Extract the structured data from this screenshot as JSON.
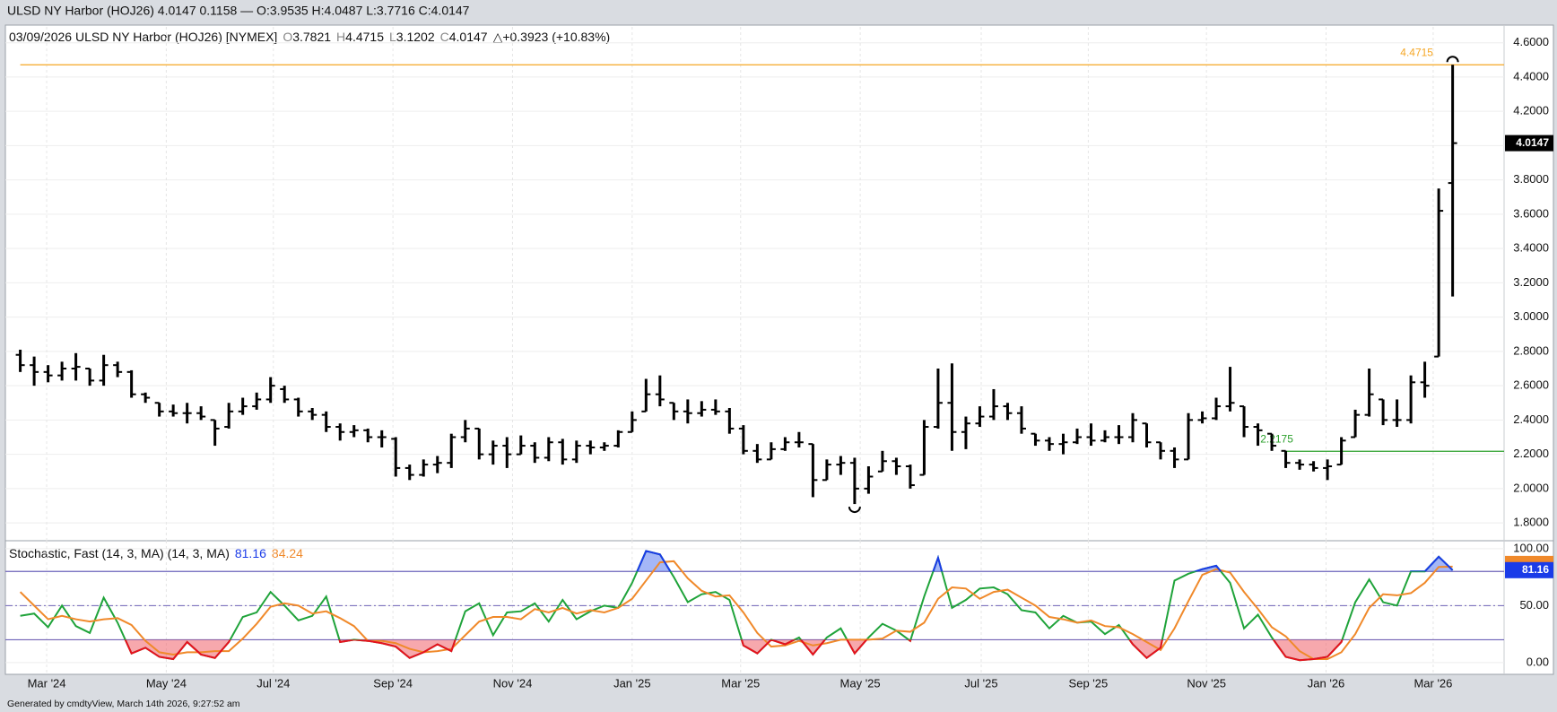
{
  "header": {
    "title": "ULSD NY Harbor (HOJ26) 4.0147 0.1158 — O:3.9535 H:4.0487 L:3.7716 C:4.0147"
  },
  "footer": "Generated by cmdtyView, March 14th 2026, 9:27:52 am",
  "chart_data": [
    {
      "type": "ohlc",
      "legend": {
        "label": "03/09/2026 ULSD NY Harbor (HOJ26) [NYMEX]",
        "letters": [
          "O",
          "H",
          "L",
          "C"
        ],
        "change": "△+0.3923 (+10.83%)"
      },
      "color": "#000000",
      "open": [
        2.78,
        2.72,
        2.68,
        2.66,
        2.7,
        2.7,
        2.63,
        2.72,
        2.68,
        2.55,
        2.5,
        2.45,
        2.44,
        2.44,
        2.4,
        2.36,
        2.45,
        2.48,
        2.52,
        2.58,
        2.52,
        2.45,
        2.43,
        2.36,
        2.33,
        2.34,
        2.3,
        2.29,
        2.12,
        2.08,
        2.14,
        2.15,
        2.3,
        2.35,
        2.2,
        2.25,
        2.2,
        2.25,
        2.18,
        2.27,
        2.17,
        2.25,
        2.24,
        2.25,
        2.33,
        2.45,
        2.55,
        2.5,
        2.45,
        2.44,
        2.46,
        2.45,
        2.35,
        2.22,
        2.17,
        2.23,
        2.27,
        2.26,
        2.05,
        2.14,
        2.15,
        2.0,
        2.1,
        2.16,
        2.13,
        2.08,
        2.36,
        2.5,
        2.33,
        2.38,
        2.42,
        2.48,
        2.44,
        2.32,
        2.28,
        2.26,
        2.27,
        2.3,
        2.28,
        2.3,
        2.3,
        2.38,
        2.27,
        2.22,
        2.17,
        2.4,
        2.41,
        2.48,
        2.48,
        2.36,
        2.32,
        2.22,
        2.15,
        2.14,
        2.12,
        2.14,
        2.3,
        2.43,
        2.52,
        2.4,
        2.4,
        2.62,
        2.77,
        3.7821
      ],
      "high": [
        2.81,
        2.77,
        2.72,
        2.74,
        2.79,
        2.7,
        2.78,
        2.74,
        2.69,
        2.56,
        2.5,
        2.49,
        2.5,
        2.48,
        2.4,
        2.5,
        2.53,
        2.56,
        2.65,
        2.6,
        2.53,
        2.47,
        2.45,
        2.38,
        2.37,
        2.35,
        2.34,
        2.3,
        2.14,
        2.17,
        2.19,
        2.32,
        2.4,
        2.35,
        2.28,
        2.3,
        2.31,
        2.27,
        2.3,
        2.29,
        2.28,
        2.28,
        2.27,
        2.34,
        2.45,
        2.64,
        2.66,
        2.5,
        2.52,
        2.51,
        2.52,
        2.47,
        2.37,
        2.26,
        2.27,
        2.3,
        2.33,
        2.26,
        2.17,
        2.19,
        2.18,
        2.13,
        2.22,
        2.18,
        2.14,
        2.4,
        2.7,
        2.73,
        2.42,
        2.48,
        2.58,
        2.5,
        2.48,
        2.32,
        2.3,
        2.32,
        2.35,
        2.38,
        2.34,
        2.37,
        2.44,
        2.38,
        2.27,
        2.24,
        2.44,
        2.45,
        2.53,
        2.71,
        2.48,
        2.38,
        2.32,
        2.22,
        2.17,
        2.16,
        2.17,
        2.3,
        2.46,
        2.7,
        2.52,
        2.52,
        2.66,
        2.74,
        3.75,
        4.4715
      ],
      "low": [
        2.68,
        2.6,
        2.62,
        2.63,
        2.63,
        2.6,
        2.6,
        2.65,
        2.53,
        2.5,
        2.42,
        2.42,
        2.38,
        2.4,
        2.25,
        2.35,
        2.43,
        2.46,
        2.5,
        2.5,
        2.42,
        2.4,
        2.33,
        2.28,
        2.3,
        2.27,
        2.24,
        2.07,
        2.05,
        2.07,
        2.09,
        2.12,
        2.27,
        2.17,
        2.14,
        2.12,
        2.2,
        2.15,
        2.16,
        2.14,
        2.15,
        2.2,
        2.22,
        2.24,
        2.33,
        2.45,
        2.48,
        2.4,
        2.38,
        2.42,
        2.43,
        2.32,
        2.2,
        2.15,
        2.17,
        2.22,
        2.24,
        1.95,
        2.05,
        2.08,
        1.91,
        1.97,
        2.1,
        2.08,
        2.0,
        2.08,
        2.35,
        2.22,
        2.23,
        2.36,
        2.4,
        2.4,
        2.32,
        2.25,
        2.22,
        2.2,
        2.26,
        2.25,
        2.27,
        2.26,
        2.27,
        2.24,
        2.17,
        2.12,
        2.17,
        2.38,
        2.4,
        2.45,
        2.3,
        2.25,
        2.22,
        2.12,
        2.11,
        2.1,
        2.05,
        2.14,
        2.3,
        2.42,
        2.37,
        2.36,
        2.38,
        2.53,
        2.77,
        3.1202
      ],
      "close": [
        2.72,
        2.68,
        2.66,
        2.7,
        2.71,
        2.63,
        2.72,
        2.68,
        2.55,
        2.53,
        2.45,
        2.44,
        2.44,
        2.42,
        2.35,
        2.45,
        2.48,
        2.52,
        2.6,
        2.52,
        2.45,
        2.43,
        2.36,
        2.33,
        2.34,
        2.3,
        2.3,
        2.12,
        2.08,
        2.14,
        2.15,
        2.3,
        2.35,
        2.2,
        2.25,
        2.2,
        2.25,
        2.18,
        2.27,
        2.17,
        2.25,
        2.24,
        2.25,
        2.33,
        2.4,
        2.55,
        2.52,
        2.45,
        2.44,
        2.46,
        2.45,
        2.35,
        2.22,
        2.17,
        2.23,
        2.27,
        2.27,
        2.05,
        2.14,
        2.15,
        2.0,
        2.07,
        2.16,
        2.13,
        2.02,
        2.36,
        2.5,
        2.33,
        2.38,
        2.42,
        2.48,
        2.44,
        2.35,
        2.28,
        2.26,
        2.27,
        2.3,
        2.28,
        2.3,
        2.3,
        2.4,
        2.27,
        2.22,
        2.17,
        2.4,
        2.41,
        2.48,
        2.5,
        2.36,
        2.34,
        2.25,
        2.15,
        2.14,
        2.12,
        2.13,
        2.28,
        2.43,
        2.55,
        2.4,
        2.4,
        2.62,
        2.6,
        3.62,
        4.0147
      ],
      "xlim": [
        -1.07,
        106.7
      ],
      "ylim": [
        1.696,
        4.6925
      ],
      "yticks": [
        {
          "value": 1.8,
          "label": "1.8000"
        },
        {
          "value": 2.0,
          "label": "2.0000"
        },
        {
          "value": 2.2,
          "label": "2.2000"
        },
        {
          "value": 2.4,
          "label": "2.4000"
        },
        {
          "value": 2.6,
          "label": "2.6000"
        },
        {
          "value": 2.8,
          "label": "2.8000"
        },
        {
          "value": 3.0,
          "label": "3.0000"
        },
        {
          "value": 3.2,
          "label": "3.2000"
        },
        {
          "value": 3.4,
          "label": "3.4000"
        },
        {
          "value": 3.6,
          "label": "3.6000"
        },
        {
          "value": 3.8,
          "label": "3.8000"
        },
        {
          "value": 4.0,
          "label": "4.0000"
        },
        {
          "value": 4.2,
          "label": "4.2000"
        },
        {
          "value": 4.4,
          "label": "4.4000"
        },
        {
          "value": 4.6,
          "label": "4.6000"
        }
      ],
      "grid": true,
      "annotations": [
        {
          "value": 4.4715,
          "color": "#f5a623",
          "start": 0
        },
        {
          "value": 2.2175,
          "color": "#2ca02c",
          "start": 91
        }
      ]
    },
    {
      "type": "stochastic",
      "title": "Stochastic, Fast (14, 3, MA)  (14, 3, MA)",
      "series": [
        {
          "color": "#1fa33a",
          "label_color": "#1a3be8",
          "values": [
            41,
            43,
            31,
            50,
            32,
            26,
            57,
            35,
            8,
            13,
            5,
            3,
            18,
            7,
            4,
            18,
            40,
            44,
            62,
            50,
            37,
            41,
            58,
            18,
            20,
            19,
            17,
            14,
            4,
            9,
            16,
            10,
            45,
            52,
            24,
            44,
            45,
            52,
            36,
            55,
            38,
            45,
            50,
            48,
            70,
            98,
            95,
            75,
            53,
            60,
            62,
            55,
            15,
            8,
            20,
            16,
            22,
            7,
            22,
            30,
            8,
            22,
            34,
            28,
            19,
            58,
            92,
            48,
            55,
            65,
            66,
            60,
            46,
            44,
            30,
            41,
            35,
            36,
            25,
            33,
            16,
            4,
            13,
            72,
            78,
            82,
            85,
            70,
            30,
            42,
            22,
            5,
            2,
            3,
            5,
            18,
            53,
            73,
            53,
            50,
            80,
            80,
            93,
            81.16
          ]
        },
        {
          "color": "#f0892a",
          "label_color": "#f0892a",
          "values": [
            62,
            50,
            38,
            41,
            38,
            36,
            38,
            39,
            33,
            19,
            9,
            7,
            9,
            9,
            10,
            10,
            21,
            34,
            49,
            52,
            50,
            43,
            45,
            39,
            32,
            19,
            19,
            17,
            12,
            9,
            10,
            12,
            24,
            36,
            40,
            40,
            38,
            47,
            44,
            48,
            43,
            46,
            44,
            48,
            56,
            72,
            88,
            89,
            74,
            63,
            58,
            59,
            44,
            26,
            14,
            15,
            19,
            15,
            17,
            20,
            20,
            20,
            21,
            28,
            27,
            35,
            56,
            66,
            65,
            56,
            62,
            64,
            57,
            50,
            40,
            38,
            35,
            37,
            32,
            31,
            25,
            18,
            11,
            30,
            54,
            77,
            82,
            79,
            62,
            47,
            31,
            23,
            10,
            3,
            3,
            9,
            25,
            48,
            60,
            59,
            61,
            70,
            84,
            84.24
          ]
        }
      ],
      "levels": {
        "overbought": 80,
        "middle": 50,
        "oversold": 20
      },
      "fills": {
        "overbought": "#5b7cf0",
        "oversold": "#f0606a"
      },
      "level_color": "#6d62b8",
      "xlim": [
        -1.07,
        106.7
      ],
      "ylim": [
        -9.6,
        107
      ],
      "yticks": [
        {
          "value": 100,
          "label": "100.00"
        },
        {
          "value": 50,
          "label": "50.00"
        },
        {
          "value": 0,
          "label": "0.00"
        }
      ],
      "xticks": [
        {
          "value": 1.9,
          "label": "Mar '24"
        },
        {
          "value": 10.5,
          "label": "May '24"
        },
        {
          "value": 18.2,
          "label": "Jul '24"
        },
        {
          "value": 26.8,
          "label": "Sep '24"
        },
        {
          "value": 35.4,
          "label": "Nov '24"
        },
        {
          "value": 44.0,
          "label": "Jan '25"
        },
        {
          "value": 51.8,
          "label": "Mar '25"
        },
        {
          "value": 60.4,
          "label": "May '25"
        },
        {
          "value": 69.1,
          "label": "Jul '25"
        },
        {
          "value": 76.8,
          "label": "Sep '25"
        },
        {
          "value": 85.3,
          "label": "Nov '25"
        },
        {
          "value": 93.9,
          "label": "Jan '26"
        },
        {
          "value": 101.6,
          "label": "Mar '26"
        }
      ]
    }
  ]
}
